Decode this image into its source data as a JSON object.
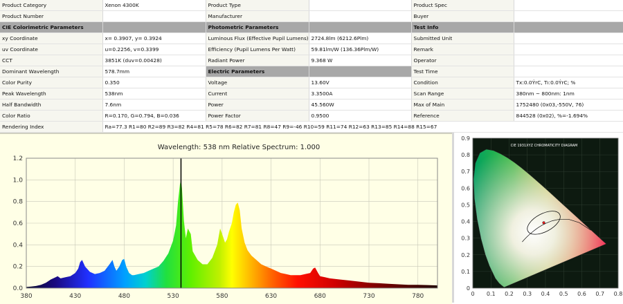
{
  "table": {
    "rows": [
      [
        "Product Category",
        "Xenon 4300K",
        "Product Type",
        "",
        "Product Spec",
        ""
      ],
      [
        "Product Number",
        "",
        "Manufacturer",
        "",
        "Buyer",
        ""
      ],
      [
        "CIE Colorimetric Parameters",
        "",
        "Photometric Parameters",
        "",
        "Test Info",
        ""
      ],
      [
        "xy Coordinate",
        "x= 0.3907, y= 0.3924",
        "Luminous Flux (Effective Pupil Lumens)",
        "2724.8lm (6212.6Plm)",
        "Submitted Unit",
        ""
      ],
      [
        "uv Coordinate",
        "u=0.2256, v=0.3399",
        "Efficiency (Pupil Lumens Per Watt)",
        "59.81lm/W (136.36Plm/W)",
        "Remark",
        ""
      ],
      [
        "CCT",
        "3851K (duv=0.00428)",
        "Radiant Power",
        "9.368 W",
        "Operator",
        ""
      ],
      [
        "Dominant Wavelength",
        "578.7mm",
        "Electric Parameters",
        "",
        "Test Time",
        ""
      ],
      [
        "Color Purity",
        "0.350",
        "Voltage",
        "13.60V",
        "Condition",
        "Tx:0.0ÝrC, Tı:0.0ÝrC; %"
      ],
      [
        "Peak Wavelength",
        "538nm",
        "Current",
        "3.3500A",
        "Scan Range",
        "380nm ~ 800nm: 1nm"
      ],
      [
        "Half Bandwidth",
        "7.6nm",
        "Power",
        "45.560W",
        "Max of Main",
        "1752480 (0x03,-550V, 76)"
      ],
      [
        "Color Ratio",
        "R=0.170, G=0.794, B=0.036",
        "Power Factor",
        "0.9500",
        "Reference",
        "844528 (0x02), %=-1.694%"
      ],
      [
        "Rendering Index",
        "Ra=77.3  R1=80 R2=89 R3=82 R4=81 R5=78 R6=82 R7=81 R8=47 R9=-46 R10=59 R11=74 R12=63 R13=85 R14=88 R15=67",
        "",
        "",
        "",
        ""
      ]
    ],
    "section_rows": {
      "2": [
        0,
        2,
        4
      ],
      "6": [
        2
      ]
    }
  },
  "chart_data": [
    {
      "type": "line",
      "title": "Wavelength:  538 nm    Relative Spectrum:  1.000",
      "xlabel": "",
      "ylabel": "",
      "xlim": [
        380,
        800
      ],
      "ylim": [
        0,
        1.2
      ],
      "x_ticks": [
        "380",
        "430",
        "480",
        "530",
        "580",
        "630",
        "680",
        "730",
        "780"
      ],
      "y_ticks": [
        "0.0",
        "0.2",
        "0.4",
        "0.6",
        "0.8",
        "1.0",
        "1.2"
      ],
      "grid": true,
      "marker_wavelength": 538,
      "series": [
        {
          "x": [
            380,
            385,
            390,
            395,
            400,
            405,
            410,
            412,
            415,
            420,
            425,
            430,
            433,
            435,
            437,
            440,
            445,
            450,
            455,
            460,
            465,
            468,
            470,
            472,
            475,
            478,
            480,
            482,
            485,
            488,
            490,
            495,
            500,
            505,
            510,
            515,
            520,
            525,
            530,
            533,
            535,
            537,
            538,
            539,
            541,
            543,
            545,
            548,
            550,
            555,
            560,
            565,
            570,
            575,
            578,
            580,
            583,
            585,
            587,
            590,
            592,
            594,
            596,
            598,
            600,
            603,
            606,
            610,
            615,
            620,
            625,
            630,
            635,
            640,
            645,
            650,
            655,
            660,
            665,
            670,
            673,
            675,
            678,
            680,
            685,
            690,
            700,
            710,
            720,
            730,
            740,
            750,
            760,
            770,
            780,
            790,
            800
          ],
          "values": [
            0.01,
            0.015,
            0.02,
            0.03,
            0.05,
            0.08,
            0.1,
            0.11,
            0.09,
            0.1,
            0.11,
            0.14,
            0.18,
            0.24,
            0.26,
            0.2,
            0.15,
            0.13,
            0.14,
            0.16,
            0.22,
            0.26,
            0.2,
            0.16,
            0.2,
            0.26,
            0.27,
            0.2,
            0.14,
            0.12,
            0.12,
            0.13,
            0.14,
            0.16,
            0.18,
            0.2,
            0.25,
            0.32,
            0.44,
            0.58,
            0.8,
            0.96,
            1.0,
            0.92,
            0.62,
            0.46,
            0.55,
            0.5,
            0.34,
            0.26,
            0.22,
            0.22,
            0.28,
            0.4,
            0.55,
            0.5,
            0.42,
            0.45,
            0.52,
            0.6,
            0.7,
            0.77,
            0.79,
            0.72,
            0.55,
            0.42,
            0.35,
            0.3,
            0.26,
            0.22,
            0.2,
            0.18,
            0.16,
            0.14,
            0.13,
            0.12,
            0.12,
            0.12,
            0.13,
            0.14,
            0.18,
            0.19,
            0.14,
            0.11,
            0.1,
            0.09,
            0.08,
            0.07,
            0.06,
            0.05,
            0.045,
            0.04,
            0.035,
            0.03,
            0.03,
            0.028,
            0.025
          ]
        }
      ]
    },
    {
      "type": "scatter",
      "title": "CIE 1931XYZ CHROMATICITY DIAGRAM",
      "xlim": [
        0,
        0.8
      ],
      "ylim": [
        0,
        0.9
      ],
      "x_ticks": [
        "0",
        "0.1",
        "0.2",
        "0.3",
        "0.4",
        "0.5",
        "0.6",
        "0.7",
        "0.8"
      ],
      "y_ticks": [
        "0",
        "0.1",
        "0.2",
        "0.3",
        "0.4",
        "0.5",
        "0.6",
        "0.7",
        "0.8",
        "0.9"
      ],
      "points": [
        {
          "x": 0.3907,
          "y": 0.3924
        }
      ]
    }
  ]
}
